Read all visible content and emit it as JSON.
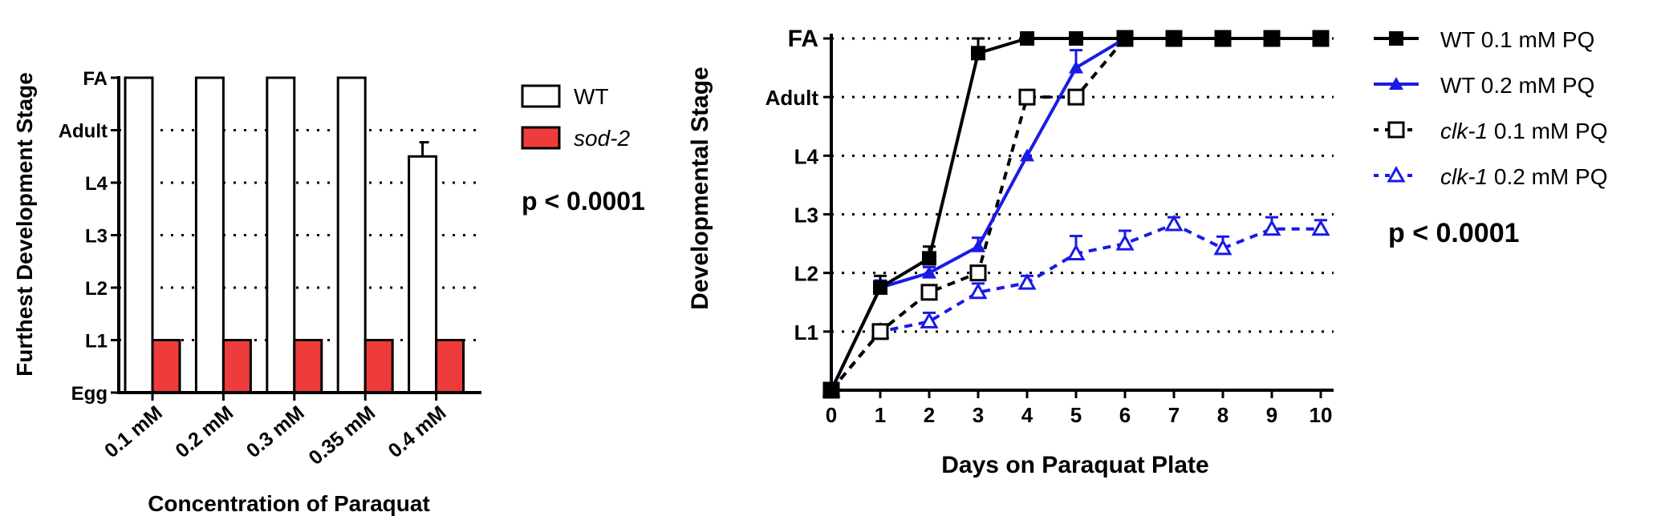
{
  "chart_data": [
    {
      "type": "bar",
      "ylabel": "Furthest Development Stage",
      "xlabel": "Concentration of Paraquat",
      "y_categories": [
        "Egg",
        "L1",
        "L2",
        "L3",
        "L4",
        "Adult",
        "FA"
      ],
      "gridlines": [
        "L1",
        "L2",
        "L3",
        "L4",
        "Adult"
      ],
      "categories": [
        "0.1 mM",
        "0.2 mM",
        "0.3 mM",
        "0.35 mM",
        "0.4 mM"
      ],
      "series": [
        {
          "name": "WT",
          "values": [
            6,
            6,
            6,
            6,
            4.5
          ],
          "errors": [
            0,
            0,
            0,
            0,
            0.27
          ],
          "color": "#ffffff"
        },
        {
          "name": "sod-2",
          "values": [
            1,
            1,
            1,
            1,
            1
          ],
          "errors": [
            0,
            0,
            0,
            0,
            0
          ],
          "color": "#ee3b3b"
        }
      ],
      "annotation": "p < 0.0001",
      "ylim": [
        0,
        6
      ],
      "legend_position": "right"
    },
    {
      "type": "line",
      "ylabel": "Developmental Stage",
      "xlabel": "Days on Paraquat Plate",
      "y_categories": [
        "",
        "L1",
        "L2",
        "L3",
        "L4",
        "Adult",
        "FA"
      ],
      "gridlines": [
        "L1",
        "L2",
        "L3",
        "L4",
        "Adult",
        "FA"
      ],
      "x": [
        0,
        1,
        2,
        3,
        4,
        5,
        6,
        7,
        8,
        9,
        10
      ],
      "xlim": [
        0,
        10
      ],
      "ylim": [
        0,
        6
      ],
      "series": [
        {
          "name": "WT 0.1 mM PQ",
          "name_italic": "",
          "name_rest": "WT 0.1 mM PQ",
          "x": [
            0,
            1,
            2,
            3,
            4,
            5,
            6,
            7,
            8,
            9,
            10
          ],
          "values": [
            0,
            1.75,
            2.25,
            5.75,
            6,
            6,
            6,
            6,
            6,
            6,
            6
          ],
          "errors": [
            0,
            0.2,
            0.2,
            0.25,
            0,
            0,
            0,
            0,
            0,
            0,
            0
          ],
          "color": "#000000",
          "marker": "square-filled",
          "dash": "solid"
        },
        {
          "name": "WT 0.2 mM PQ",
          "name_italic": "",
          "name_rest": "WT 0.2 mM PQ",
          "x": [
            0,
            1,
            2,
            3,
            4,
            5,
            6,
            7,
            8,
            9,
            10
          ],
          "values": [
            0,
            1.75,
            2,
            2.45,
            4,
            5.5,
            6,
            6,
            6,
            6,
            6
          ],
          "errors": [
            0,
            0.12,
            0.1,
            0.15,
            0,
            0.3,
            0,
            0,
            0,
            0,
            0
          ],
          "color": "#1a1ae6",
          "marker": "triangle-filled",
          "dash": "solid"
        },
        {
          "name": "clk-1 0.1 mM PQ",
          "name_italic": "clk-1",
          "name_rest": " 0.1 mM PQ",
          "x": [
            0,
            1,
            2,
            3,
            4,
            5,
            6,
            7,
            8,
            9,
            10
          ],
          "values": [
            0,
            1,
            1.67,
            2,
            5,
            5,
            6,
            6,
            6,
            6,
            6
          ],
          "errors": [
            0,
            0,
            0,
            0,
            0,
            0,
            0,
            0,
            0,
            0,
            0
          ],
          "color": "#000000",
          "marker": "square-open",
          "dash": "dashed"
        },
        {
          "name": "clk-1 0.2 mM PQ",
          "name_italic": "clk-1",
          "name_rest": " 0.2 mM PQ",
          "x": [
            0,
            1,
            2,
            3,
            4,
            5,
            6,
            7,
            8,
            9,
            10
          ],
          "values": [
            0,
            1,
            1.17,
            1.67,
            1.83,
            2.33,
            2.5,
            2.83,
            2.42,
            2.75,
            2.75
          ],
          "errors": [
            0,
            0,
            0.15,
            0.15,
            0.12,
            0.3,
            0.22,
            0.12,
            0.2,
            0.2,
            0.15
          ],
          "color": "#1a1ae6",
          "marker": "triangle-open",
          "dash": "dashed"
        }
      ],
      "annotation": "p < 0.0001",
      "legend_position": "right"
    }
  ]
}
